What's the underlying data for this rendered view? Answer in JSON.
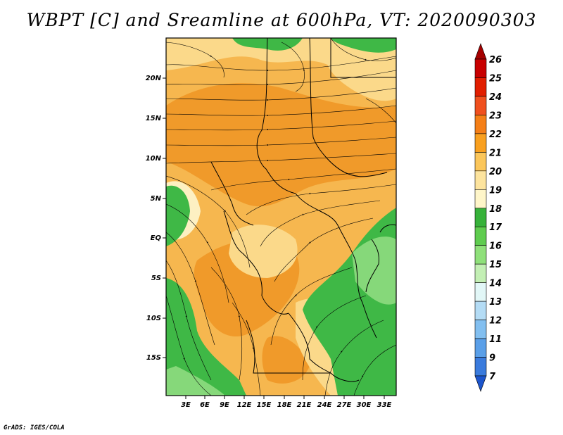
{
  "title": "WBPT [C] and Sreamline at 600hPa, VT: 2020090303",
  "credit": "GrADS: IGES/COLA",
  "map": {
    "lat_labels": [
      "20N",
      "15N",
      "10N",
      "5N",
      "EQ",
      "5S",
      "10S",
      "15S"
    ],
    "lon_labels": [
      "3E",
      "6E",
      "9E",
      "12E",
      "15E",
      "18E",
      "21E",
      "24E",
      "27E",
      "30E",
      "33E"
    ]
  },
  "colorbar": {
    "labels": [
      "26",
      "25",
      "24",
      "23",
      "22",
      "21",
      "20",
      "19",
      "18",
      "17",
      "16",
      "15",
      "14",
      "13",
      "12",
      "11",
      "9",
      "7"
    ],
    "colors": [
      "#a50000",
      "#c80000",
      "#e11e00",
      "#f0501e",
      "#f57f17",
      "#f9a01f",
      "#fbc65a",
      "#fde49e",
      "#fff6c9",
      "#37b23a",
      "#5fcc4f",
      "#8fe07a",
      "#c3efb4",
      "#e2f7f7",
      "#b4dcf5",
      "#82bff0",
      "#5a9fe8",
      "#3a7bdd",
      "#1c55cc"
    ]
  },
  "colors": {
    "warm_dark": "#f09a2a",
    "warm_mid": "#f6b74f",
    "warm_light": "#fbd98a",
    "cream": "#fdf0c2",
    "green": "#3fb846",
    "green_light": "#86d87a"
  }
}
